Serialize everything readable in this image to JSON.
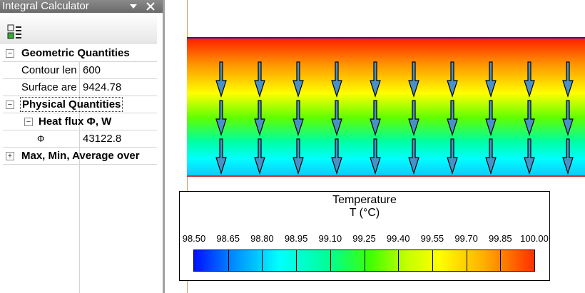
{
  "panel": {
    "title": "Integral Calculator",
    "rows": [
      {
        "label": "Geometric Quantities"
      },
      {
        "name": "Contour len",
        "value": 600
      },
      {
        "name": "Surface are",
        "value": 9424.78
      },
      {
        "label": "Physical Quantities"
      },
      {
        "label": "Heat flux Φ, W"
      },
      {
        "name": "Φ",
        "value": 43122.8
      },
      {
        "label": "Max, Min, Average over"
      }
    ]
  },
  "legend": {
    "title": "Temperature",
    "subtitle": "T (°C)",
    "ticks": [
      "98.50",
      "98.65",
      "98.80",
      "98.95",
      "99.10",
      "99.25",
      "99.40",
      "99.55",
      "99.70",
      "99.85",
      "100.00"
    ]
  }
}
